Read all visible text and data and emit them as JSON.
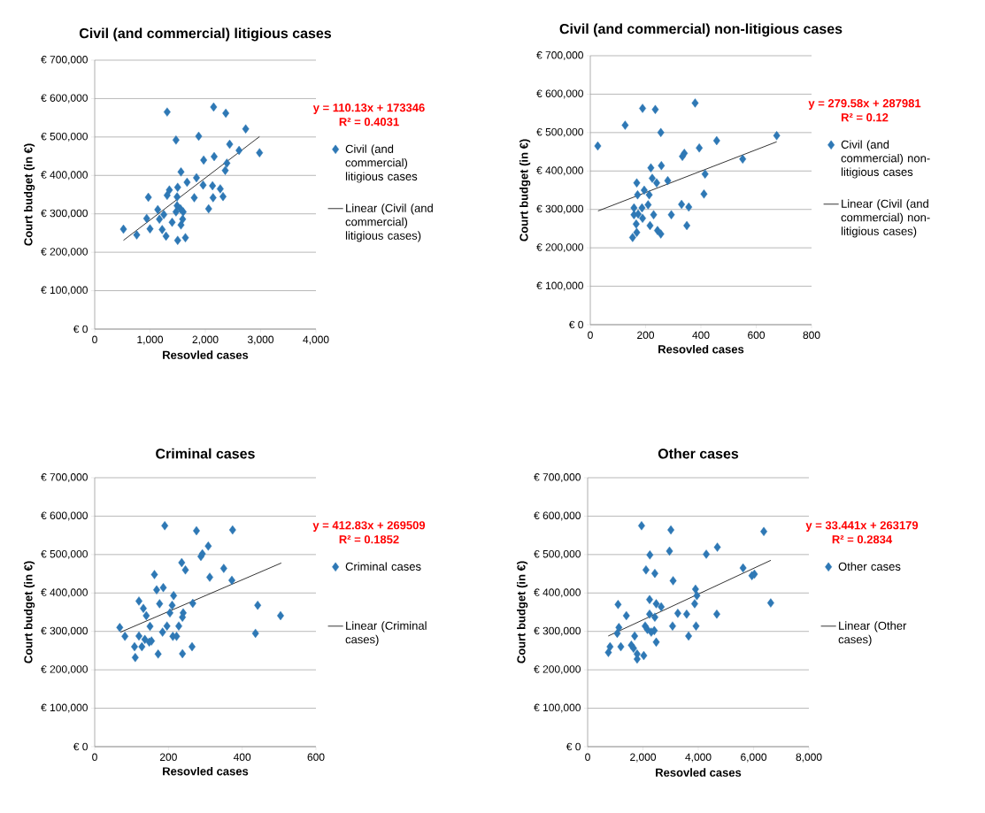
{
  "chart_data": [
    {
      "type": "scatter",
      "title": "Civil (and commercial) litigious cases",
      "xlabel": "Resovled cases",
      "ylabel": "Court budget (in €)",
      "xlim": [
        0,
        4000
      ],
      "ylim": [
        0,
        700000
      ],
      "xticks": [
        {
          "value": 0,
          "label": "0"
        },
        {
          "value": 1000,
          "label": "1,000"
        },
        {
          "value": 2000,
          "label": "2,000"
        },
        {
          "value": 3000,
          "label": "3,000"
        },
        {
          "value": 4000,
          "label": "4,000"
        }
      ],
      "yticks": [
        {
          "value": 0,
          "label": "€ 0"
        },
        {
          "value": 100000,
          "label": "€ 100,000"
        },
        {
          "value": 200000,
          "label": "€ 200,000"
        },
        {
          "value": 300000,
          "label": "€ 300,000"
        },
        {
          "value": 400000,
          "label": "€ 400,000"
        },
        {
          "value": 500000,
          "label": "€ 500,000"
        },
        {
          "value": 600000,
          "label": "€ 600,000"
        },
        {
          "value": 700000,
          "label": "€ 700,000"
        }
      ],
      "grid": "y",
      "legend": "right",
      "marker": "diamond",
      "annotations": [
        "y = 110.13x + 173346",
        "R² = 0.4031"
      ],
      "series": [
        {
          "name": "Civil (and commercial) litigious cases",
          "color": "#2e78b5",
          "x": [
            520,
            760,
            970,
            940,
            1000,
            1140,
            1170,
            1250,
            1220,
            1290,
            1310,
            1350,
            1310,
            1470,
            1500,
            1490,
            1560,
            1670,
            1490,
            1400,
            1470,
            1550,
            1590,
            1560,
            1500,
            1640,
            1600,
            1800,
            1840,
            1880,
            1960,
            1970,
            2060,
            2140,
            2130,
            2160,
            2150,
            2270,
            2320,
            2360,
            2390,
            2370,
            2440,
            2610,
            2730,
            2980
          ],
          "values": [
            260000,
            245000,
            343000,
            288000,
            261000,
            311000,
            286000,
            298000,
            259000,
            242000,
            348000,
            362000,
            565000,
            492000,
            369000,
            344000,
            409000,
            382000,
            321000,
            278000,
            305000,
            313000,
            286000,
            271000,
            231000,
            238000,
            305000,
            342000,
            394000,
            502000,
            375000,
            440000,
            313000,
            342000,
            373000,
            449000,
            578000,
            365000,
            345000,
            413000,
            432000,
            562000,
            481000,
            465000,
            521000,
            459000
          ]
        },
        {
          "name": "Linear (Civil (and commercial) litigious cases)",
          "type": "line",
          "marker": "none",
          "color": "#000000",
          "x": [
            520,
            2980
          ],
          "values": [
            231000,
            501000
          ]
        }
      ]
    },
    {
      "type": "scatter",
      "title": "Civil (and commercial) non-litigious cases",
      "xlabel": "Resovled cases",
      "ylabel": "Court budget (in €)",
      "xlim": [
        0,
        800
      ],
      "ylim": [
        0,
        700000
      ],
      "xticks": [
        {
          "value": 0,
          "label": "0"
        },
        {
          "value": 200,
          "label": "200"
        },
        {
          "value": 400,
          "label": "400"
        },
        {
          "value": 600,
          "label": "600"
        },
        {
          "value": 800,
          "label": "800"
        }
      ],
      "yticks": [
        {
          "value": 0,
          "label": "€ 0"
        },
        {
          "value": 100000,
          "label": "€ 100,000"
        },
        {
          "value": 200000,
          "label": "€ 200,000"
        },
        {
          "value": 300000,
          "label": "€ 300,000"
        },
        {
          "value": 400000,
          "label": "€ 400,000"
        },
        {
          "value": 500000,
          "label": "€ 500,000"
        },
        {
          "value": 600000,
          "label": "€ 600,000"
        },
        {
          "value": 700000,
          "label": "€ 700,000"
        }
      ],
      "grid": "y",
      "legend": "right",
      "marker": "diamond",
      "annotations": [
        "y = 279.58x + 287981",
        "R² = 0.12"
      ],
      "series": [
        {
          "name": "Civil (and commercial) non-litigious cases",
          "color": "#2e78b5",
          "x": [
            27,
            126,
            189,
            235,
            255,
            379,
            340,
            333,
            394,
            457,
            674,
            551,
            415,
            411,
            257,
            219,
            224,
            240,
            280,
            168,
            171,
            195,
            213,
            209,
            187,
            158,
            173,
            166,
            168,
            153,
            216,
            229,
            243,
            255,
            293,
            330,
            356,
            349,
            158,
            189
          ],
          "values": [
            465000,
            519000,
            563000,
            560000,
            500000,
            577000,
            446000,
            438000,
            460000,
            479000,
            492000,
            431000,
            392000,
            340000,
            414000,
            408000,
            381000,
            369000,
            375000,
            369000,
            338000,
            350000,
            338000,
            312000,
            304000,
            286000,
            288000,
            262000,
            240000,
            227000,
            258000,
            286000,
            245000,
            236000,
            286000,
            313000,
            306000,
            258000,
            304000,
            277000
          ]
        },
        {
          "name": "Linear (Civil (and commercial) non-litigious cases)",
          "type": "line",
          "marker": "none",
          "color": "#000000",
          "x": [
            28,
            674
          ],
          "values": [
            296000,
            476000
          ]
        }
      ]
    },
    {
      "type": "scatter",
      "title": "Criminal cases",
      "xlabel": "Resovled cases",
      "ylabel": "Court budget (in €)",
      "xlim": [
        0,
        600
      ],
      "ylim": [
        0,
        700000
      ],
      "xticks": [
        {
          "value": 0,
          "label": "0"
        },
        {
          "value": 200,
          "label": "200"
        },
        {
          "value": 400,
          "label": "400"
        },
        {
          "value": 600,
          "label": "600"
        }
      ],
      "yticks": [
        {
          "value": 0,
          "label": "€ 0"
        },
        {
          "value": 100000,
          "label": "€ 100,000"
        },
        {
          "value": 200000,
          "label": "€ 200,000"
        },
        {
          "value": 300000,
          "label": "€ 300,000"
        },
        {
          "value": 400000,
          "label": "€ 400,000"
        },
        {
          "value": 500000,
          "label": "€ 500,000"
        },
        {
          "value": 600000,
          "label": "€ 600,000"
        },
        {
          "value": 700000,
          "label": "€ 700,000"
        }
      ],
      "grid": "y",
      "legend": "right",
      "marker": "diamond",
      "annotations": [
        "y = 412.83x + 269509",
        "R² = 0.1852"
      ],
      "series": [
        {
          "name": "Criminal cases",
          "color": "#2e78b5",
          "x": [
            68,
            82,
            108,
            110,
            120,
            128,
            136,
            148,
            154,
            150,
            140,
            132,
            120,
            162,
            168,
            186,
            176,
            172,
            190,
            184,
            196,
            204,
            210,
            214,
            212,
            222,
            228,
            238,
            240,
            238,
            236,
            246,
            266,
            264,
            276,
            288,
            292,
            308,
            312,
            350,
            372,
            374,
            436,
            442,
            504
          ],
          "values": [
            310000,
            287000,
            260000,
            232000,
            288000,
            260000,
            279000,
            272000,
            275000,
            313000,
            341000,
            360000,
            379000,
            448000,
            408000,
            414000,
            372000,
            241000,
            575000,
            298000,
            314000,
            348000,
            368000,
            393000,
            287000,
            287000,
            314000,
            337000,
            348000,
            242000,
            479000,
            460000,
            373000,
            260000,
            562000,
            495000,
            502000,
            522000,
            441000,
            464000,
            433000,
            564000,
            295000,
            368000,
            341000
          ]
        },
        {
          "name": "Linear (Criminal cases)",
          "type": "line",
          "marker": "none",
          "color": "#000000",
          "x": [
            70,
            506
          ],
          "values": [
            298000,
            478000
          ]
        }
      ]
    },
    {
      "type": "scatter",
      "title": "Other cases",
      "xlabel": "Resovled cases",
      "ylabel": "Court budget (in €)",
      "xlim": [
        0,
        8000
      ],
      "ylim": [
        0,
        700000
      ],
      "xticks": [
        {
          "value": 0,
          "label": "0"
        },
        {
          "value": 2000,
          "label": "2,000"
        },
        {
          "value": 4000,
          "label": "4,000"
        },
        {
          "value": 6000,
          "label": "6,000"
        },
        {
          "value": 8000,
          "label": "8,000"
        }
      ],
      "yticks": [
        {
          "value": 0,
          "label": "€ 0"
        },
        {
          "value": 100000,
          "label": "€ 100,000"
        },
        {
          "value": 200000,
          "label": "€ 200,000"
        },
        {
          "value": 300000,
          "label": "€ 300,000"
        },
        {
          "value": 400000,
          "label": "€ 400,000"
        },
        {
          "value": 500000,
          "label": "€ 500,000"
        },
        {
          "value": 600000,
          "label": "€ 600,000"
        },
        {
          "value": 700000,
          "label": "€ 700,000"
        }
      ],
      "grid": "y",
      "legend": "right",
      "marker": "diamond",
      "annotations": [
        "y = 33.441x + 263179",
        "R² = 0.2834"
      ],
      "series": [
        {
          "name": "Other cases",
          "color": "#2e78b5",
          "x": [
            750,
            810,
            1100,
            1130,
            1070,
            1200,
            1400,
            1580,
            1700,
            1660,
            1790,
            1790,
            2030,
            1950,
            2080,
            2110,
            2250,
            2160,
            2240,
            2240,
            2300,
            2410,
            2480,
            2430,
            2430,
            2480,
            2660,
            2960,
            3010,
            3090,
            3070,
            3260,
            3650,
            3580,
            3900,
            3950,
            3870,
            3920,
            4290,
            4670,
            4690,
            5620,
            5940,
            6030,
            6370,
            6620
          ],
          "values": [
            245000,
            260000,
            370000,
            310000,
            295000,
            260000,
            341000,
            264000,
            288000,
            256000,
            241000,
            228000,
            237000,
            575000,
            314000,
            460000,
            499000,
            305000,
            383000,
            345000,
            298000,
            302000,
            272000,
            451000,
            337000,
            372000,
            364000,
            509000,
            564000,
            432000,
            314000,
            347000,
            288000,
            345000,
            410000,
            393000,
            372000,
            314000,
            501000,
            345000,
            519000,
            465000,
            445000,
            449000,
            560000,
            374000
          ]
        },
        {
          "name": "Linear (Other cases)",
          "type": "line",
          "marker": "none",
          "color": "#000000",
          "x": [
            745,
            6624
          ],
          "values": [
            288000,
            485000
          ]
        }
      ]
    }
  ]
}
